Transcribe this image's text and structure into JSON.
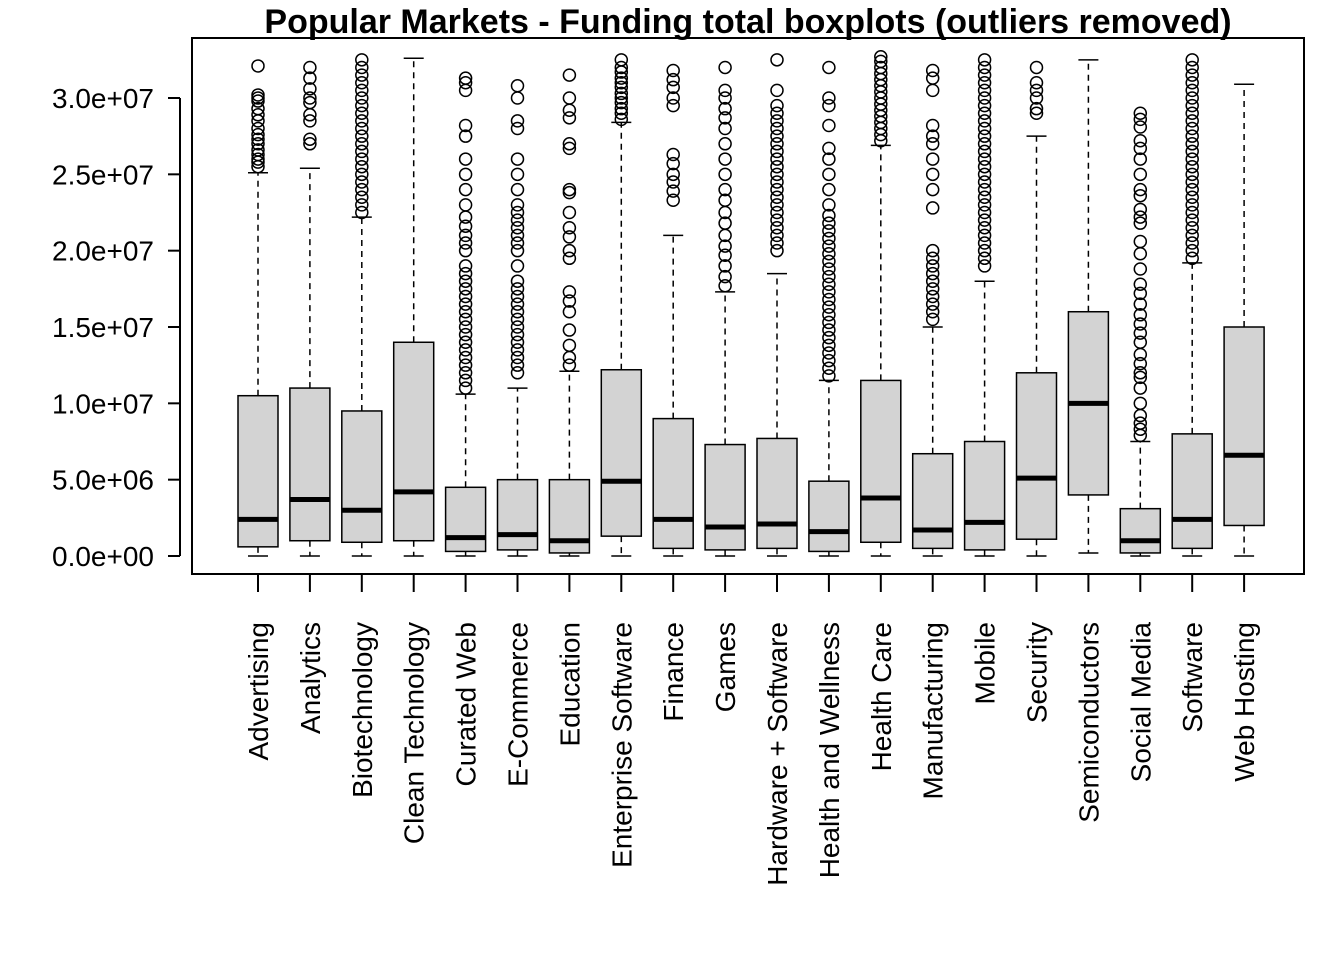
{
  "chart_data": {
    "type": "boxplot",
    "title": "Popular Markets - Funding total boxplots (outliers removed)",
    "xlabel": "",
    "ylabel": "",
    "ylim": [
      0,
      33000000
    ],
    "yticks": [
      0,
      5000000,
      10000000,
      15000000,
      20000000,
      25000000,
      30000000
    ],
    "ytick_labels": [
      "0.0e+00",
      "5.0e+06",
      "1.0e+07",
      "1.5e+07",
      "2.0e+07",
      "2.5e+07",
      "3.0e+07"
    ],
    "box_fill": "#d3d3d3",
    "categories": [
      "Advertising",
      "Analytics",
      "Biotechnology",
      "Clean Technology",
      "Curated Web",
      "E-Commerce",
      "Education",
      "Enterprise Software",
      "Finance",
      "Games",
      "Hardware + Software",
      "Health and Wellness",
      "Health Care",
      "Manufacturing",
      "Mobile",
      "Security",
      "Semiconductors",
      "Social Media",
      "Software",
      "Web Hosting"
    ],
    "boxes": [
      {
        "name": "Advertising",
        "whisker_low": 0,
        "q1": 600000,
        "median": 2400000,
        "q3": 10500000,
        "whisker_high": 25100000,
        "outliers": [
          25500000,
          25800000,
          26000000,
          26300000,
          26600000,
          27000000,
          27300000,
          27600000,
          28000000,
          28500000,
          28900000,
          29300000,
          29800000,
          30000000,
          30200000,
          32100000
        ]
      },
      {
        "name": "Analytics",
        "whisker_low": 0,
        "q1": 1000000,
        "median": 3700000,
        "q3": 11000000,
        "whisker_high": 25400000,
        "outliers": [
          27000000,
          27300000,
          28500000,
          28900000,
          29700000,
          30000000,
          30600000,
          31300000,
          32000000
        ]
      },
      {
        "name": "Biotechnology",
        "whisker_low": 0,
        "q1": 900000,
        "median": 3000000,
        "q3": 9500000,
        "whisker_high": 22200000,
        "outliers": [
          22500000,
          23000000,
          23500000,
          24000000,
          24500000,
          25000000,
          25500000,
          26000000,
          26500000,
          27000000,
          27500000,
          28000000,
          28500000,
          29000000,
          29500000,
          30000000,
          30500000,
          31000000,
          31500000,
          32000000,
          32500000
        ]
      },
      {
        "name": "Clean Technology",
        "whisker_low": 0,
        "q1": 1000000,
        "median": 4200000,
        "q3": 14000000,
        "whisker_high": 32600000,
        "outliers": []
      },
      {
        "name": "Curated Web",
        "whisker_low": 0,
        "q1": 300000,
        "median": 1200000,
        "q3": 4500000,
        "whisker_high": 10600000,
        "outliers": [
          11000000,
          11500000,
          12000000,
          12500000,
          13000000,
          13500000,
          14000000,
          14500000,
          15000000,
          15500000,
          16000000,
          16500000,
          17000000,
          17500000,
          18000000,
          18500000,
          19000000,
          20000000,
          20500000,
          21000000,
          21600000,
          22200000,
          23000000,
          24000000,
          25000000,
          26000000,
          27500000,
          28200000,
          30500000,
          31000000,
          31300000
        ]
      },
      {
        "name": "E-Commerce",
        "whisker_low": 0,
        "q1": 400000,
        "median": 1400000,
        "q3": 5000000,
        "whisker_high": 11000000,
        "outliers": [
          12000000,
          12500000,
          13000000,
          13500000,
          14000000,
          14500000,
          15000000,
          15500000,
          16000000,
          16500000,
          17000000,
          17500000,
          18000000,
          19000000,
          20000000,
          20500000,
          21000000,
          21500000,
          22000000,
          22500000,
          23000000,
          24000000,
          25000000,
          26000000,
          28000000,
          28500000,
          30000000,
          30800000
        ]
      },
      {
        "name": "Education",
        "whisker_low": 0,
        "q1": 200000,
        "median": 1000000,
        "q3": 5000000,
        "whisker_high": 12100000,
        "outliers": [
          12500000,
          13000000,
          13800000,
          14800000,
          16000000,
          16700000,
          17300000,
          19500000,
          20000000,
          20900000,
          21500000,
          22500000,
          23800000,
          24000000,
          26700000,
          27000000,
          28700000,
          29200000,
          30000000,
          31500000
        ]
      },
      {
        "name": "Enterprise Software",
        "whisker_low": 0,
        "q1": 1300000,
        "median": 4900000,
        "q3": 12200000,
        "whisker_high": 28400000,
        "outliers": [
          28600000,
          29000000,
          29300000,
          29700000,
          30000000,
          30300000,
          30700000,
          31000000,
          31300000,
          31700000,
          32000000,
          32500000
        ]
      },
      {
        "name": "Finance",
        "whisker_low": 0,
        "q1": 500000,
        "median": 2400000,
        "q3": 9000000,
        "whisker_high": 21000000,
        "outliers": [
          23300000,
          23900000,
          24500000,
          25000000,
          25700000,
          26300000,
          29500000,
          30000000,
          30700000,
          31200000,
          31800000
        ]
      },
      {
        "name": "Games",
        "whisker_low": 0,
        "q1": 400000,
        "median": 1900000,
        "q3": 7300000,
        "whisker_high": 17300000,
        "outliers": [
          17700000,
          18300000,
          19000000,
          19700000,
          20300000,
          21000000,
          21800000,
          22500000,
          23300000,
          24000000,
          25000000,
          26000000,
          27000000,
          28000000,
          28700000,
          29300000,
          30000000,
          30500000,
          32000000
        ]
      },
      {
        "name": "Hardware + Software",
        "whisker_low": 0,
        "q1": 500000,
        "median": 2100000,
        "q3": 7700000,
        "whisker_high": 18500000,
        "outliers": [
          20000000,
          20500000,
          21000000,
          21500000,
          22000000,
          22500000,
          23000000,
          23500000,
          24000000,
          24500000,
          25000000,
          25500000,
          26000000,
          26500000,
          27000000,
          27500000,
          28000000,
          28500000,
          29000000,
          29500000,
          30500000,
          32500000
        ]
      },
      {
        "name": "Health and Wellness",
        "whisker_low": 0,
        "q1": 300000,
        "median": 1600000,
        "q3": 4900000,
        "whisker_high": 11500000,
        "outliers": [
          11800000,
          12300000,
          12800000,
          13300000,
          13800000,
          14300000,
          14800000,
          15300000,
          15800000,
          16300000,
          16800000,
          17300000,
          17800000,
          18300000,
          18800000,
          19300000,
          19800000,
          20300000,
          20800000,
          21300000,
          21800000,
          22300000,
          23000000,
          24000000,
          25000000,
          26000000,
          26700000,
          28200000,
          29500000,
          30000000,
          32000000
        ]
      },
      {
        "name": "Health Care",
        "whisker_low": 0,
        "q1": 900000,
        "median": 3800000,
        "q3": 11500000,
        "whisker_high": 26900000,
        "outliers": [
          27200000,
          27600000,
          28000000,
          28400000,
          28800000,
          29200000,
          29600000,
          30000000,
          30400000,
          30800000,
          31200000,
          31600000,
          32000000,
          32400000,
          32700000
        ]
      },
      {
        "name": "Manufacturing",
        "whisker_low": 0,
        "q1": 500000,
        "median": 1700000,
        "q3": 6700000,
        "whisker_high": 15000000,
        "outliers": [
          15500000,
          16000000,
          16500000,
          17000000,
          17500000,
          18000000,
          18500000,
          19000000,
          19500000,
          20000000,
          22800000,
          24000000,
          25000000,
          26000000,
          27000000,
          27500000,
          28200000,
          30500000,
          31300000,
          31800000
        ]
      },
      {
        "name": "Mobile",
        "whisker_low": 0,
        "q1": 400000,
        "median": 2200000,
        "q3": 7500000,
        "whisker_high": 18000000,
        "outliers": [
          19000000,
          19500000,
          20000000,
          20500000,
          21000000,
          21500000,
          22000000,
          22500000,
          23000000,
          23500000,
          24000000,
          24500000,
          25000000,
          25500000,
          26000000,
          26500000,
          27000000,
          27500000,
          28000000,
          28500000,
          29000000,
          29500000,
          30000000,
          30500000,
          31000000,
          31500000,
          32000000,
          32500000
        ]
      },
      {
        "name": "Security",
        "whisker_low": 0,
        "q1": 1100000,
        "median": 5100000,
        "q3": 12000000,
        "whisker_high": 27500000,
        "outliers": [
          29000000,
          29300000,
          30000000,
          30500000,
          31000000,
          32000000
        ]
      },
      {
        "name": "Semiconductors",
        "whisker_low": 200000,
        "q1": 4000000,
        "median": 10000000,
        "q3": 16000000,
        "whisker_high": 32500000,
        "outliers": []
      },
      {
        "name": "Social Media",
        "whisker_low": 0,
        "q1": 200000,
        "median": 1000000,
        "q3": 3100000,
        "whisker_high": 7500000,
        "outliers": [
          7900000,
          8300000,
          8700000,
          9200000,
          10000000,
          11000000,
          11700000,
          12000000,
          12600000,
          13200000,
          14000000,
          14600000,
          15200000,
          15800000,
          16500000,
          17200000,
          17800000,
          18800000,
          19800000,
          20600000,
          21800000,
          22200000,
          22700000,
          23600000,
          24000000,
          25000000,
          26000000,
          26700000,
          27200000,
          28100000,
          28600000,
          29000000
        ]
      },
      {
        "name": "Software",
        "whisker_low": 0,
        "q1": 500000,
        "median": 2400000,
        "q3": 8000000,
        "whisker_high": 19200000,
        "outliers": [
          19500000,
          20000000,
          20500000,
          21000000,
          21500000,
          22000000,
          22500000,
          23000000,
          23500000,
          24000000,
          24500000,
          25000000,
          25500000,
          26000000,
          26500000,
          27000000,
          27500000,
          28000000,
          28500000,
          29000000,
          29500000,
          30000000,
          30500000,
          31000000,
          31500000,
          32000000,
          32500000
        ]
      },
      {
        "name": "Web Hosting",
        "whisker_low": 0,
        "q1": 2000000,
        "median": 6600000,
        "q3": 15000000,
        "whisker_high": 30900000,
        "outliers": []
      }
    ]
  }
}
